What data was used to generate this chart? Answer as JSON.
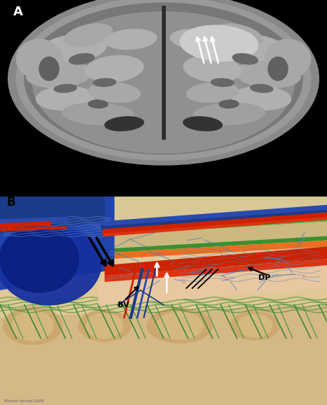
{
  "fig_width": 4.67,
  "fig_height": 5.79,
  "dpi": 100,
  "panel_A_label": "A",
  "panel_B_label": "B",
  "label_BV": "BV",
  "label_DP": "DP",
  "watermark": "Martha Harnell 2006",
  "bg_color_A": "#111111",
  "bg_color_B": "#e8d5b0",
  "blue_dark": "#1a3a8a",
  "blue_medium": "#4a7fc1",
  "blue_light": "#7ab0e0",
  "red_bright": "#cc2200",
  "orange_color": "#e87020",
  "green_color": "#4a9a40",
  "tan_color": "#d4b896",
  "skull_color": "#d4c4a0",
  "dura_color": "#e8a030"
}
